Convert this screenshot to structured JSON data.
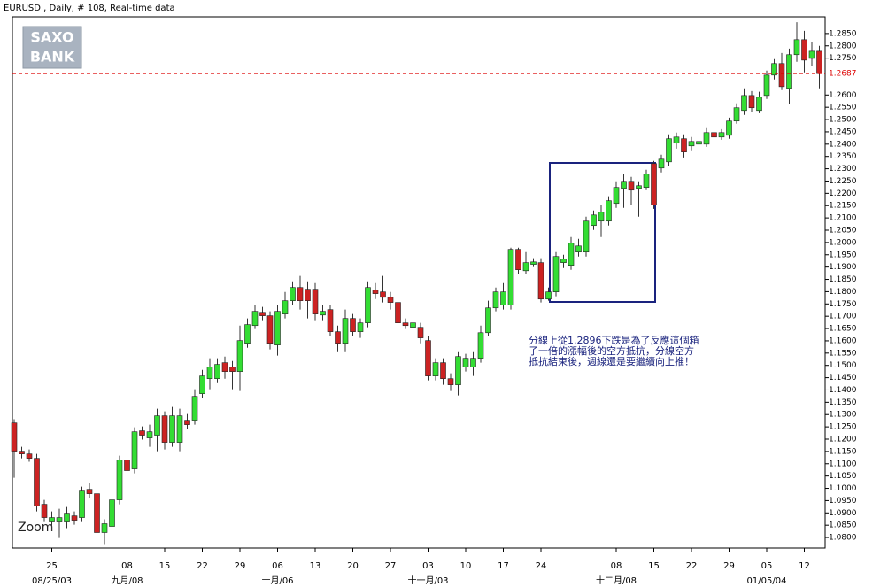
{
  "chart_data": {
    "type": "candlestick",
    "title": "EURUSD , Daily, # 108, Real-time data",
    "logo": [
      "SAXO",
      "BANK"
    ],
    "zoom_label": "Zoom",
    "annotation": [
      "分線上從1.2896下跌是為了反應這個箱",
      "子一倍的漲幅後的空方抵抗，分線空方",
      "抵抗結束後，週線還是要繼續向上推！"
    ],
    "up_color": "#33dd33",
    "down_color": "#cc2222",
    "last_price": 1.2687,
    "last_price_color": "#dd0000",
    "categories": [
      null,
      null,
      null,
      null,
      null,
      "25",
      null,
      null,
      null,
      null,
      null,
      null,
      null,
      null,
      null,
      "08",
      null,
      null,
      null,
      null,
      "15",
      null,
      null,
      null,
      null,
      "22",
      null,
      null,
      null,
      null,
      "29",
      null,
      null,
      null,
      null,
      "06",
      null,
      null,
      null,
      null,
      "13",
      null,
      null,
      null,
      null,
      "20",
      null,
      null,
      null,
      null,
      "27",
      null,
      null,
      null,
      null,
      "03",
      null,
      null,
      null,
      null,
      "10",
      null,
      null,
      null,
      null,
      "17",
      null,
      null,
      null,
      null,
      "24",
      null,
      null,
      null,
      null,
      null,
      null,
      null,
      null,
      null,
      "08",
      null,
      null,
      null,
      null,
      "15",
      null,
      null,
      null,
      null,
      "22",
      null,
      null,
      null,
      null,
      "29",
      null,
      null,
      null,
      null,
      "05",
      null,
      null,
      null,
      null,
      "12",
      null,
      null
    ],
    "date_labels": [
      null,
      null,
      null,
      null,
      null,
      "08/25/03",
      null,
      null,
      null,
      null,
      null,
      null,
      null,
      null,
      null,
      "九月/08",
      null,
      null,
      null,
      null,
      null,
      null,
      null,
      null,
      null,
      null,
      null,
      null,
      null,
      null,
      null,
      null,
      null,
      null,
      null,
      "十月/06",
      null,
      null,
      null,
      null,
      null,
      null,
      null,
      null,
      null,
      null,
      null,
      null,
      null,
      null,
      null,
      null,
      null,
      null,
      null,
      "十一月/03",
      null,
      null,
      null,
      null,
      null,
      null,
      null,
      null,
      null,
      null,
      null,
      null,
      null,
      null,
      null,
      null,
      null,
      null,
      null,
      null,
      null,
      null,
      null,
      null,
      "十二月/08",
      null,
      null,
      null,
      null,
      null,
      null,
      null,
      null,
      null,
      null,
      null,
      null,
      null,
      null,
      null,
      null,
      null,
      null,
      null,
      "01/05/04",
      null,
      null,
      null,
      null,
      null,
      null,
      null
    ],
    "open": [
      1.1266,
      1.1151,
      1.114,
      1.1122,
      1.0935,
      1.0863,
      1.0863,
      1.0863,
      1.0888,
      1.0881,
      1.0996,
      1.0978,
      1.082,
      1.0845,
      1.0953,
      1.1115,
      1.1079,
      1.1234,
      1.1205,
      1.1216,
      1.1295,
      1.1187,
      1.1187,
      1.1277,
      1.1277,
      1.1385,
      1.1446,
      1.1446,
      1.1511,
      1.1493,
      1.1475,
      1.159,
      1.1662,
      1.1716,
      1.1702,
      1.1583,
      1.1709,
      1.1763,
      1.1817,
      1.181,
      1.181,
      1.1705,
      1.1727,
      1.1637,
      1.159,
      1.1691,
      1.1637,
      1.1673,
      1.1806,
      1.1799,
      1.1777,
      1.1756,
      1.1673,
      1.1655,
      1.1655,
      1.1601,
      1.1457,
      1.1511,
      1.1446,
      1.1421,
      1.1493,
      1.1493,
      1.1529,
      1.1633,
      1.1734,
      1.1745,
      1.1745,
      1.1972,
      1.1885,
      1.1911,
      1.1918,
      1.177,
      1.1799,
      1.1918,
      1.1907,
      1.1961,
      1.1961,
      1.2069,
      1.2087,
      1.2087,
      1.2159,
      1.222,
      1.2249,
      1.222,
      1.2224,
      1.2321,
      1.2303,
      1.2328,
      1.2404,
      1.2422,
      1.2393,
      1.24,
      1.24,
      1.2447,
      1.2429,
      1.2436,
      1.2494,
      1.2537,
      1.2598,
      1.2537,
      1.2598,
      1.2681,
      1.2728,
      1.2627,
      1.2764,
      1.2825,
      1.2749,
      1.2778
    ],
    "high": [
      1.1281,
      1.1169,
      1.1158,
      1.114,
      1.0953,
      1.0906,
      1.0917,
      1.0924,
      1.0906,
      1.1007,
      1.1021,
      1.0989,
      1.0874,
      1.0971,
      1.1133,
      1.1133,
      1.1248,
      1.1252,
      1.1259,
      1.1324,
      1.1313,
      1.1331,
      1.1324,
      1.1302,
      1.1403,
      1.1482,
      1.1529,
      1.1529,
      1.1536,
      1.1518,
      1.1662,
      1.1691,
      1.1745,
      1.1738,
      1.172,
      1.1745,
      1.1799,
      1.1842,
      1.1864,
      1.1842,
      1.1835,
      1.1745,
      1.1745,
      1.1662,
      1.1727,
      1.1709,
      1.1691,
      1.1842,
      1.1835,
      1.1864,
      1.1799,
      1.1777,
      1.1691,
      1.1691,
      1.1673,
      1.1619,
      1.1529,
      1.1529,
      1.1468,
      1.1554,
      1.1547,
      1.1554,
      1.1662,
      1.1763,
      1.1817,
      1.1835,
      1.1979,
      1.1979,
      1.1961,
      1.1936,
      1.1936,
      1.1817,
      1.1961,
      1.195,
      1.2022,
      1.2015,
      1.2105,
      1.213,
      1.2152,
      1.2188,
      1.2249,
      1.2278,
      1.2267,
      1.2249,
      1.2296,
      1.2332,
      1.2357,
      1.244,
      1.2447,
      1.244,
      1.2429,
      1.2425,
      1.2465,
      1.2465,
      1.2461,
      1.2508,
      1.2566,
      1.2627,
      1.2616,
      1.2613,
      1.2699,
      1.2746,
      1.2771,
      1.2789,
      1.2896,
      1.2861,
      1.2814,
      1.28
    ],
    "low": [
      1.1043,
      1.1122,
      1.1108,
      1.0906,
      1.0863,
      1.0827,
      1.0798,
      1.0838,
      1.0852,
      1.0863,
      1.096,
      1.0802,
      1.0773,
      1.0827,
      1.0935,
      1.105,
      1.1061,
      1.1198,
      1.1169,
      1.1151,
      1.1158,
      1.1169,
      1.1151,
      1.1241,
      1.1259,
      1.1367,
      1.1403,
      1.1428,
      1.1446,
      1.1403,
      1.1396,
      1.1572,
      1.1648,
      1.1684,
      1.1565,
      1.154,
      1.1691,
      1.1745,
      1.1727,
      1.1691,
      1.1684,
      1.1684,
      1.1619,
      1.1554,
      1.1554,
      1.1619,
      1.1612,
      1.1655,
      1.177,
      1.1756,
      1.1727,
      1.1655,
      1.1648,
      1.1637,
      1.159,
      1.1439,
      1.1439,
      1.1421,
      1.1396,
      1.1378,
      1.1475,
      1.1457,
      1.1511,
      1.1619,
      1.172,
      1.1727,
      1.1727,
      1.1871,
      1.1871,
      1.19,
      1.1756,
      1.1763,
      1.1781,
      1.1896,
      1.1889,
      1.1943,
      1.1943,
      1.2051,
      1.2022,
      1.2069,
      1.2141,
      1.2141,
      1.2152,
      1.2105,
      1.2213,
      1.2137,
      1.2285,
      1.231,
      1.2382,
      1.2346,
      1.2375,
      1.2386,
      1.2389,
      1.2418,
      1.2418,
      1.2422,
      1.2483,
      1.2519,
      1.253,
      1.2526,
      1.2584,
      1.2663,
      1.262,
      1.2562,
      1.2735,
      1.2692,
      1.2717,
      1.2627
    ],
    "close": [
      1.1151,
      1.114,
      1.1122,
      1.0928,
      1.0881,
      1.0881,
      1.0881,
      1.0899,
      1.087,
      1.0989,
      1.0978,
      1.082,
      1.0856,
      1.0953,
      1.1115,
      1.1072,
      1.123,
      1.1216,
      1.123,
      1.1295,
      1.1187,
      1.1295,
      1.1295,
      1.1259,
      1.1374,
      1.1457,
      1.1493,
      1.1504,
      1.1475,
      1.1475,
      1.1601,
      1.1666,
      1.172,
      1.1702,
      1.159,
      1.172,
      1.1763,
      1.1817,
      1.1763,
      1.1763,
      1.1709,
      1.172,
      1.1637,
      1.159,
      1.1691,
      1.1637,
      1.1673,
      1.1817,
      1.1792,
      1.1777,
      1.1756,
      1.1673,
      1.1662,
      1.1673,
      1.1612,
      1.1457,
      1.1511,
      1.1446,
      1.1421,
      1.1536,
      1.1529,
      1.1529,
      1.1633,
      1.1734,
      1.1799,
      1.1799,
      1.1972,
      1.1889,
      1.1918,
      1.1921,
      1.177,
      1.1799,
      1.1943,
      1.1932,
      1.1997,
      1.1986,
      1.2087,
      1.2112,
      1.2123,
      1.217,
      1.2224,
      1.2249,
      1.2213,
      1.2231,
      1.2278,
      1.2152,
      1.2339,
      1.2422,
      1.2429,
      1.2368,
      1.2411,
      1.2411,
      1.2447,
      1.2429,
      1.2447,
      1.2494,
      1.2548,
      1.2598,
      1.2548,
      1.2591,
      1.2681,
      1.2728,
      1.2634,
      1.2764,
      1.2825,
      1.2742,
      1.2778,
      1.2687
    ],
    "ylim": [
      1.0757,
      1.2918
    ],
    "yticks": [
      {
        "value": 1.08,
        "label": "1.0800"
      },
      {
        "value": 1.085,
        "label": "1.0850"
      },
      {
        "value": 1.09,
        "label": "1.0900"
      },
      {
        "value": 1.095,
        "label": "1.0950"
      },
      {
        "value": 1.1,
        "label": "1.1000"
      },
      {
        "value": 1.105,
        "label": "1.1050"
      },
      {
        "value": 1.11,
        "label": "1.1100"
      },
      {
        "value": 1.115,
        "label": "1.1150"
      },
      {
        "value": 1.12,
        "label": "1.1200"
      },
      {
        "value": 1.125,
        "label": "1.1250"
      },
      {
        "value": 1.13,
        "label": "1.1300"
      },
      {
        "value": 1.135,
        "label": "1.1350"
      },
      {
        "value": 1.14,
        "label": "1.1400"
      },
      {
        "value": 1.145,
        "label": "1.1450"
      },
      {
        "value": 1.15,
        "label": "1.1500"
      },
      {
        "value": 1.155,
        "label": "1.1550"
      },
      {
        "value": 1.16,
        "label": "1.1600"
      },
      {
        "value": 1.165,
        "label": "1.1650"
      },
      {
        "value": 1.17,
        "label": "1.1700"
      },
      {
        "value": 1.175,
        "label": "1.1750"
      },
      {
        "value": 1.18,
        "label": "1.1800"
      },
      {
        "value": 1.185,
        "label": "1.1850"
      },
      {
        "value": 1.19,
        "label": "1.1900"
      },
      {
        "value": 1.195,
        "label": "1.1950"
      },
      {
        "value": 1.2,
        "label": "1.2000"
      },
      {
        "value": 1.205,
        "label": "1.2050"
      },
      {
        "value": 1.21,
        "label": "1.2100"
      },
      {
        "value": 1.215,
        "label": "1.2150"
      },
      {
        "value": 1.22,
        "label": "1.2200"
      },
      {
        "value": 1.225,
        "label": "1.2250"
      },
      {
        "value": 1.23,
        "label": "1.2300"
      },
      {
        "value": 1.235,
        "label": "1.2350"
      },
      {
        "value": 1.24,
        "label": "1.2400"
      },
      {
        "value": 1.245,
        "label": "1.2450"
      },
      {
        "value": 1.25,
        "label": "1.2500"
      },
      {
        "value": 1.255,
        "label": "1.2550"
      },
      {
        "value": 1.26,
        "label": "1.2600"
      },
      {
        "value": 1.275,
        "label": "1.2750"
      },
      {
        "value": 1.28,
        "label": "1.2800"
      },
      {
        "value": 1.285,
        "label": "1.2850"
      }
    ]
  }
}
